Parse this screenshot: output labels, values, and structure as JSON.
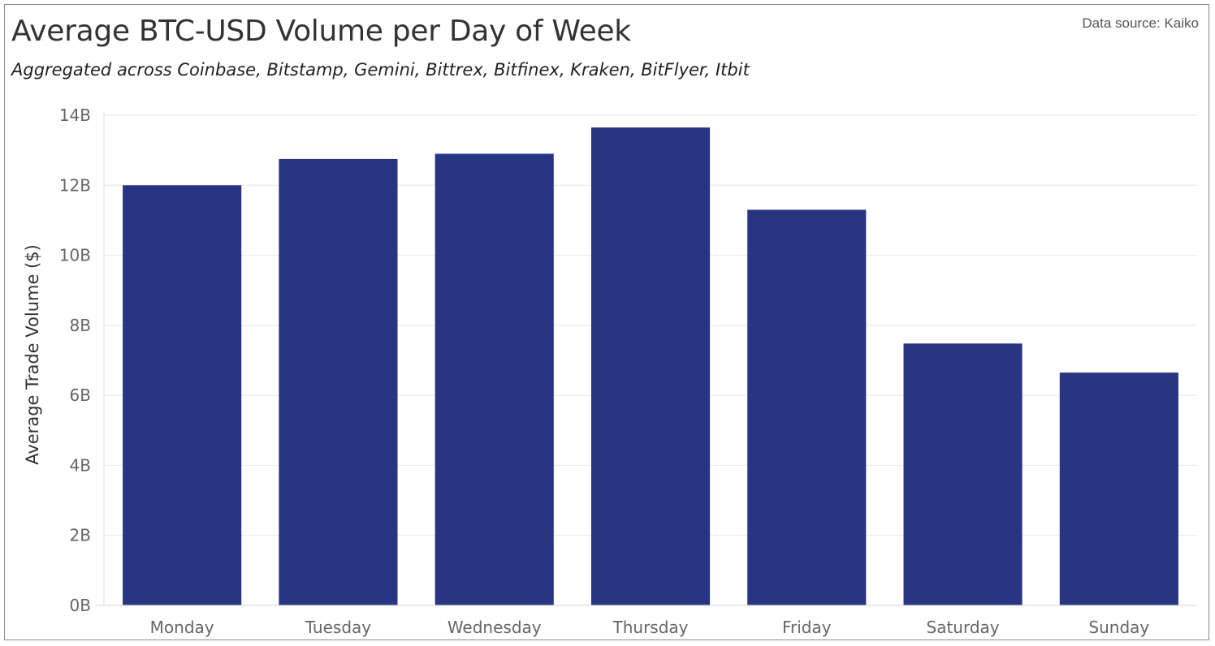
{
  "header": {
    "title": "Average BTC-USD Volume per Day of Week",
    "subtitle": "Aggregated across Coinbase, Bitstamp, Gemini, Bittrex, Bitfinex, Kraken, BitFlyer, Itbit",
    "source": "Data source: Kaiko"
  },
  "chart_data": {
    "type": "bar",
    "title": "Average BTC-USD Volume per Day of Week",
    "subtitle": "Aggregated across Coinbase, Bitstamp, Gemini, Bittrex, Bitfinex, Kraken, BitFlyer, Itbit",
    "xlabel": "",
    "ylabel": "Average Trade Volume ($)",
    "categories": [
      "Monday",
      "Tuesday",
      "Wednesday",
      "Thursday",
      "Friday",
      "Saturday",
      "Sunday"
    ],
    "values": [
      12.0,
      12.75,
      12.9,
      13.65,
      11.3,
      7.48,
      6.65
    ],
    "value_unit": "billion USD",
    "ylim": [
      0,
      14
    ],
    "yticks": [
      0,
      2,
      4,
      6,
      8,
      10,
      12,
      14
    ],
    "ytick_labels": [
      "0B",
      "2B",
      "4B",
      "6B",
      "8B",
      "10B",
      "12B",
      "14B"
    ],
    "grid": true,
    "legend": "none",
    "bar_color": "#283583"
  }
}
